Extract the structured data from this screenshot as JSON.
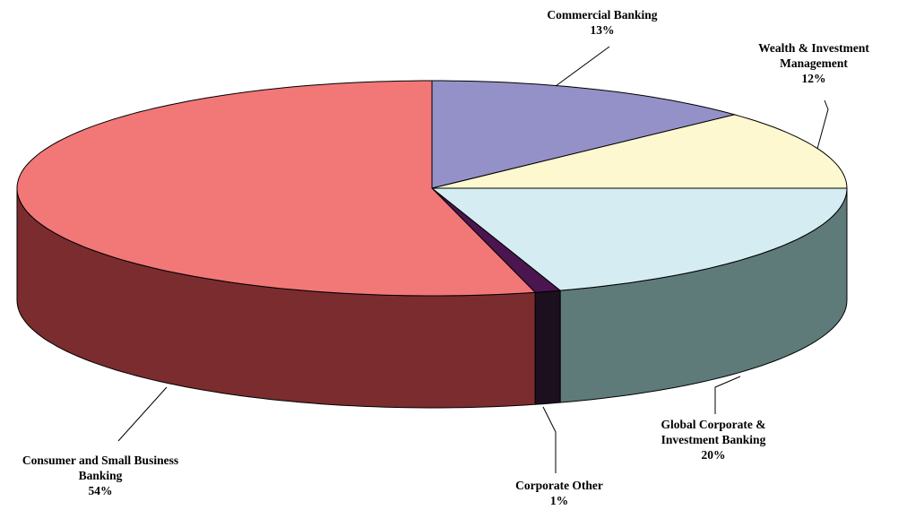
{
  "chart_data": {
    "type": "pie3d",
    "categories": [
      "Commercial Banking",
      "Wealth & Investment Management",
      "Global Corporate & Investment Banking",
      "Corporate Other",
      "Consumer and Small Business Banking"
    ],
    "values": [
      13,
      12,
      20,
      1,
      54
    ],
    "value_labels": [
      "13%",
      "12%",
      "20%",
      "1%",
      "54%"
    ],
    "colors": [
      "#9491c8",
      "#fdf8cf",
      "#d4ecf2",
      "#4b1550",
      "#f27777"
    ],
    "side_colors": [
      "#4c4a70",
      "#8a8660",
      "#5e7b7a",
      "#1c0f1e",
      "#7b2c2f"
    ]
  }
}
